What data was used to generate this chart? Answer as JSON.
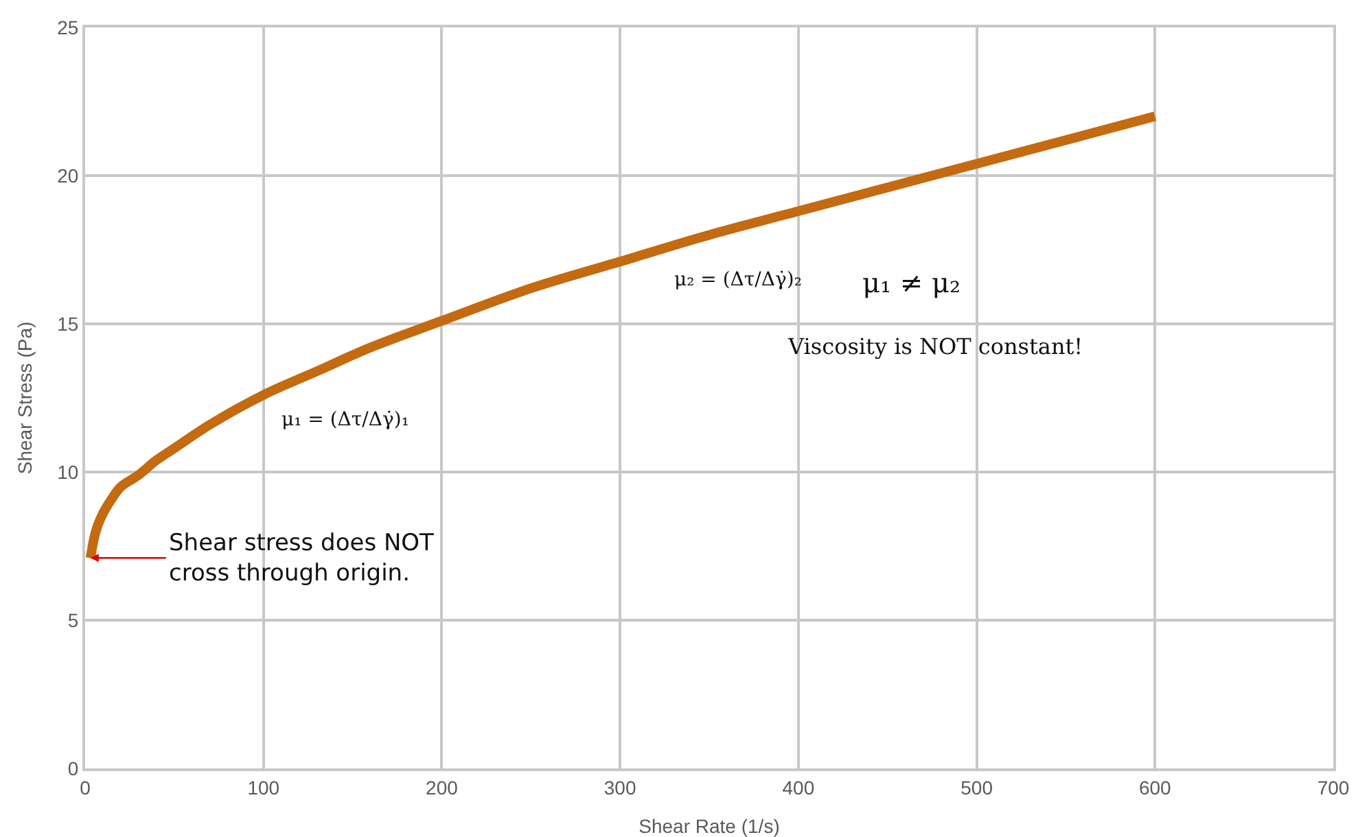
{
  "chart_data": {
    "type": "line",
    "xlabel": "Shear Rate (1/s)",
    "ylabel": "Shear Stress (Pa)",
    "x": [
      3,
      6,
      10,
      15,
      20,
      30,
      40,
      50,
      70,
      100,
      130,
      160,
      200,
      250,
      300,
      350,
      400,
      450,
      500,
      550,
      600
    ],
    "series": [
      {
        "color": "#c46a10",
        "values": [
          7.1,
          8.0,
          8.6,
          9.1,
          9.5,
          9.9,
          10.4,
          10.8,
          11.6,
          12.6,
          13.4,
          14.2,
          15.1,
          16.2,
          17.1,
          18.0,
          18.8,
          19.6,
          20.4,
          21.2,
          22.0
        ]
      }
    ],
    "xlim": [
      0,
      700
    ],
    "xticks": [
      0,
      100,
      200,
      300,
      400,
      500,
      600,
      700
    ],
    "ylim": [
      0,
      25
    ],
    "yticks": [
      0,
      5,
      10,
      15,
      20,
      25
    ],
    "grid": true,
    "marker": "none",
    "line_style": "solid",
    "annotations": [
      {
        "text": "Shear stress does NOT cross through origin.",
        "x": 3,
        "y": 7.1
      },
      "μ₁ = (Δτ/Δγ̇)₁",
      "μ₂ = (Δτ/Δγ̇)₂",
      "μ₁ ≠ μ₂",
      "Viscosity is NOT constant!"
    ]
  }
}
